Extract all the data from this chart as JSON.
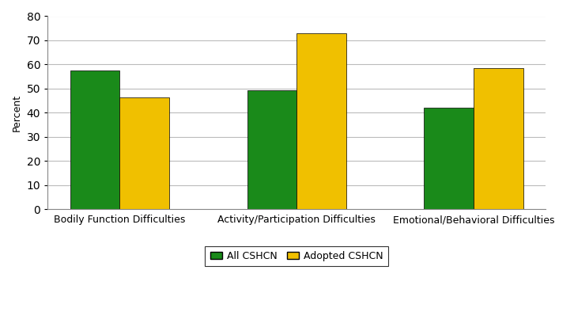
{
  "categories": [
    "Bodily Function Difficulties",
    "Activity/Participation Difficulties",
    "Emotional/Behavioral Difficulties"
  ],
  "all_cshcn": [
    57.5,
    49.5,
    42.0
  ],
  "adopted_cshcn": [
    46.5,
    73.0,
    58.5
  ],
  "all_color": "#1a8a1a",
  "adopted_color": "#f0c000",
  "ylabel": "Percent",
  "ylim": [
    0,
    80
  ],
  "yticks": [
    0,
    10,
    20,
    30,
    40,
    50,
    60,
    70,
    80
  ],
  "legend_labels": [
    "All CSHCN",
    "Adopted CSHCN"
  ],
  "bar_width": 0.28,
  "bar_gap": 0.0,
  "background_color": "#ffffff",
  "grid_color": "#bbbbbb",
  "edge_color": "#000000",
  "tick_fontsize": 9,
  "ylabel_fontsize": 9
}
